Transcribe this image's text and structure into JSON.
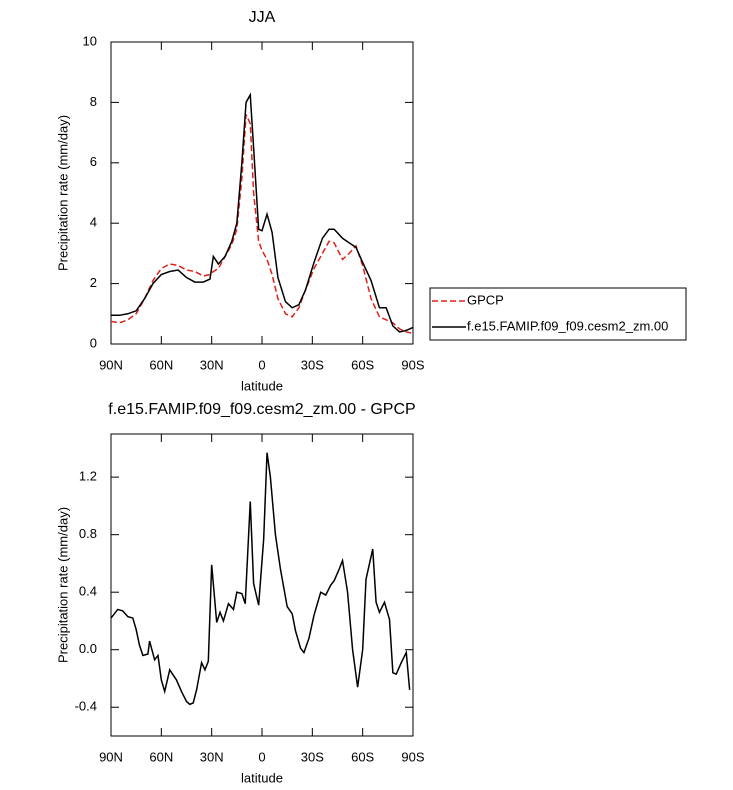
{
  "chart_data": [
    {
      "type": "line",
      "title": "JJA",
      "x_label": "latitude",
      "y_label": "Precipitation rate (mm/day)",
      "x": [
        90,
        85,
        80,
        75,
        70,
        65,
        60,
        55,
        50,
        45,
        40,
        35,
        31,
        29,
        26,
        22,
        18,
        15,
        12,
        9.5,
        7,
        5,
        2,
        0,
        -3,
        -6,
        -9.5,
        -14,
        -18,
        -22,
        -26,
        -31,
        -36,
        -40,
        -43,
        -48,
        -52,
        -56,
        -60,
        -65,
        -70,
        -74,
        -78,
        -82,
        -86,
        -90
      ],
      "xlim": [
        90,
        -90
      ],
      "xticks": [
        {
          "value": 90,
          "label": "90N"
        },
        {
          "value": 60,
          "label": "60N"
        },
        {
          "value": 30,
          "label": "30N"
        },
        0,
        {
          "value": -30,
          "label": "30S"
        },
        {
          "value": -60,
          "label": "60S"
        },
        {
          "value": -90,
          "label": "90S"
        }
      ],
      "ylim": [
        0,
        10
      ],
      "yticks": [
        0,
        2,
        4,
        6,
        8,
        10
      ],
      "series": [
        {
          "name": "GPCP",
          "color": "#e0201c",
          "dashed": true,
          "values": [
            0.75,
            0.7,
            0.8,
            1.0,
            1.5,
            2.1,
            2.5,
            2.65,
            2.6,
            2.45,
            2.4,
            2.25,
            2.3,
            2.4,
            2.5,
            2.9,
            3.3,
            3.8,
            5.5,
            7.6,
            7.3,
            5.0,
            3.4,
            3.1,
            2.8,
            2.3,
            1.5,
            1.0,
            0.9,
            1.2,
            1.8,
            2.5,
            3.0,
            3.4,
            3.35,
            2.8,
            3.0,
            3.25,
            2.6,
            1.5,
            0.9,
            0.8,
            0.7,
            0.5,
            0.4,
            0.35
          ]
        },
        {
          "name": "f.e15.FAMIP.f09_f09.cesm2_zm.00",
          "color": "#000000",
          "dashed": false,
          "values": [
            0.95,
            0.95,
            1.0,
            1.1,
            1.5,
            2.0,
            2.3,
            2.4,
            2.45,
            2.2,
            2.05,
            2.05,
            2.15,
            2.9,
            2.65,
            2.9,
            3.4,
            4.0,
            6.0,
            8.0,
            8.25,
            6.5,
            3.8,
            3.75,
            4.3,
            3.7,
            2.2,
            1.4,
            1.2,
            1.3,
            1.8,
            2.7,
            3.5,
            3.8,
            3.8,
            3.5,
            3.35,
            3.2,
            2.7,
            2.1,
            1.2,
            1.2,
            0.6,
            0.4,
            0.45,
            0.55
          ]
        }
      ]
    },
    {
      "type": "line",
      "title": "f.e15.FAMIP.f09_f09.cesm2_zm.00 - GPCP",
      "x_label": "latitude",
      "y_label": "Precipitation rate (mm/day)",
      "x": [
        90,
        86,
        83,
        80,
        77,
        75,
        73,
        71,
        68,
        67,
        64,
        62,
        60,
        58,
        55,
        51,
        48,
        45,
        43,
        41,
        39,
        36,
        34,
        32,
        30,
        27,
        25,
        23,
        20,
        17,
        15,
        12,
        10,
        7,
        5,
        2,
        -1,
        -3,
        -5,
        -8,
        -11,
        -15,
        -18,
        -20,
        -23,
        -25,
        -28,
        -31,
        -35,
        -38,
        -41,
        -43,
        -46,
        -48,
        -51,
        -54,
        -57,
        -60,
        -62,
        -66,
        -68,
        -70,
        -73,
        -76,
        -78,
        -80,
        -83,
        -86,
        -88
      ],
      "values": [
        0.22,
        0.28,
        0.27,
        0.23,
        0.22,
        0.14,
        0.03,
        -0.04,
        -0.03,
        0.06,
        -0.07,
        -0.04,
        -0.21,
        -0.29,
        -0.14,
        -0.21,
        -0.29,
        -0.36,
        -0.38,
        -0.37,
        -0.28,
        -0.09,
        -0.14,
        -0.08,
        0.59,
        0.19,
        0.26,
        0.2,
        0.32,
        0.28,
        0.4,
        0.39,
        0.32,
        1.03,
        0.46,
        0.31,
        0.77,
        1.37,
        1.2,
        0.8,
        0.56,
        0.3,
        0.25,
        0.13,
        0.01,
        -0.02,
        0.08,
        0.24,
        0.4,
        0.38,
        0.45,
        0.48,
        0.56,
        0.62,
        0.4,
        0.0,
        -0.26,
        0.0,
        0.49,
        0.7,
        0.33,
        0.26,
        0.33,
        0.21,
        -0.16,
        -0.17,
        -0.09,
        -0.02,
        -0.28
      ],
      "color": "#000000",
      "xlim": [
        90,
        -90
      ],
      "xticks": [
        {
          "value": 90,
          "label": "90N"
        },
        {
          "value": 60,
          "label": "60N"
        },
        {
          "value": 30,
          "label": "30N"
        },
        0,
        {
          "value": -30,
          "label": "30S"
        },
        {
          "value": -60,
          "label": "60S"
        },
        {
          "value": -90,
          "label": "90S"
        }
      ],
      "ylim": [
        -0.6,
        1.5
      ],
      "yticks": [
        -0.4,
        {
          "value": 0,
          "label": "0.0"
        },
        0.4,
        0.8,
        1.2
      ]
    }
  ]
}
